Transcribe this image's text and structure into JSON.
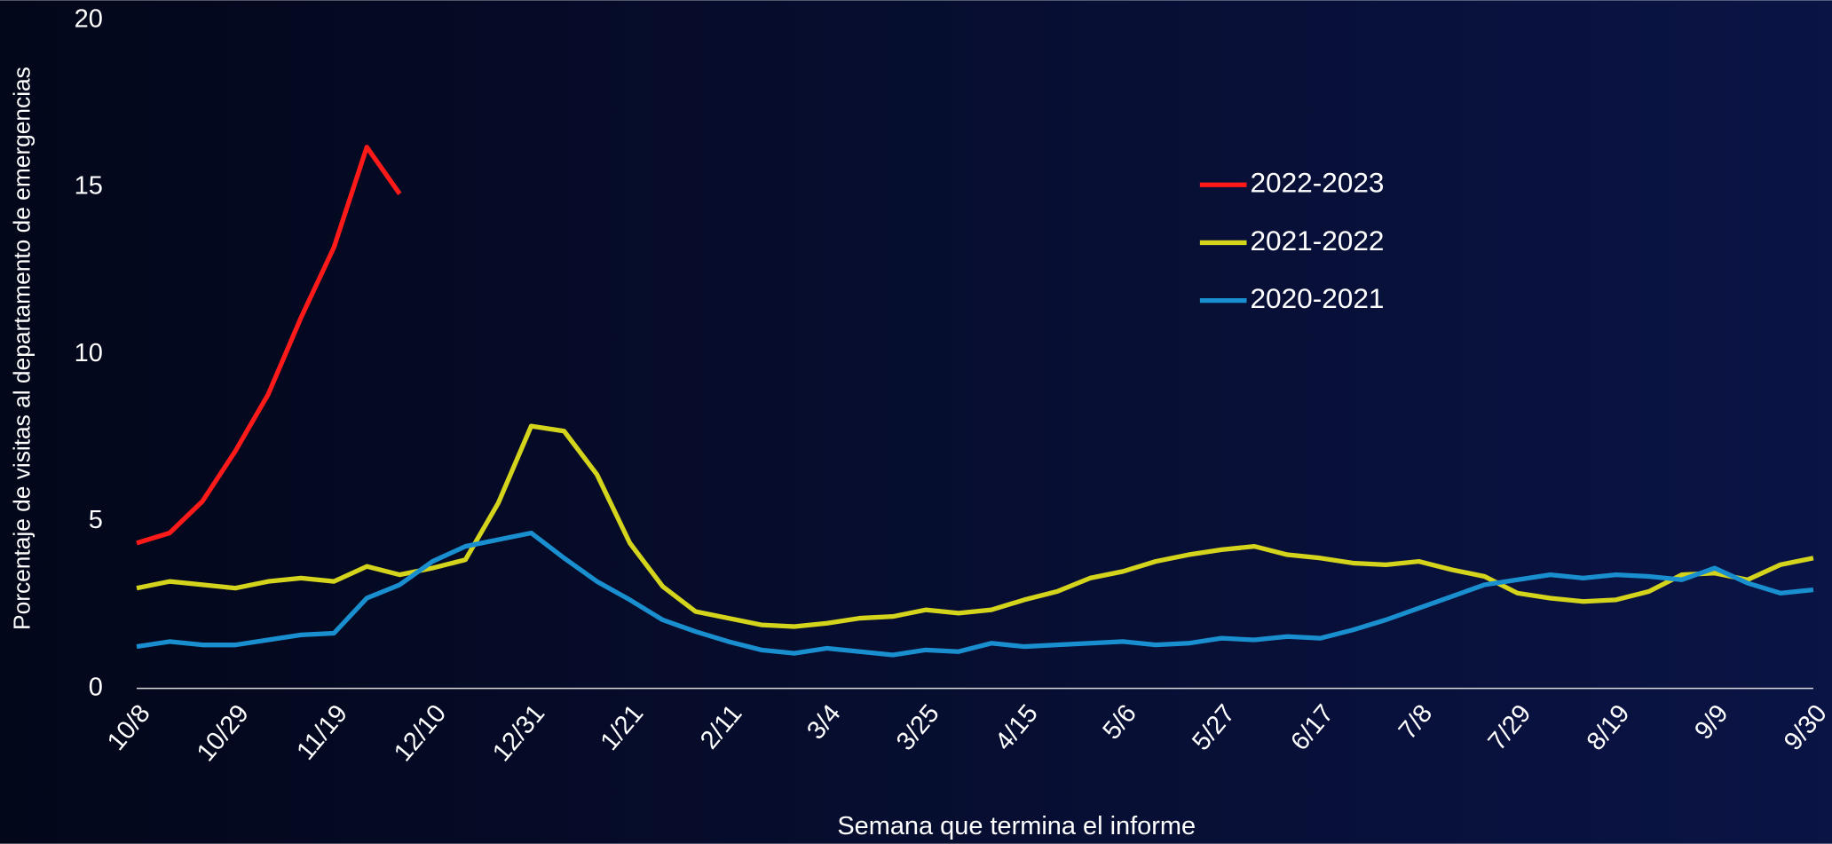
{
  "chart_data": {
    "type": "line",
    "x_label": "Semana que termina el informe",
    "y_label": "Porcentaje de visitas al departamento de emergencias",
    "categories": [
      "10/8",
      null,
      null,
      "10/29",
      null,
      null,
      "11/19",
      null,
      null,
      "12/10",
      null,
      null,
      "12/31",
      null,
      null,
      "1/21",
      null,
      null,
      "2/11",
      null,
      null,
      "3/4",
      null,
      null,
      "3/25",
      null,
      null,
      "4/15",
      null,
      null,
      "5/6",
      null,
      null,
      "5/27",
      null,
      null,
      "6/17",
      null,
      null,
      "7/8",
      null,
      null,
      "7/29",
      null,
      null,
      "8/19",
      null,
      null,
      "9/9",
      null,
      null,
      "9/30"
    ],
    "ylim": [
      0,
      20
    ],
    "yticks": [
      0,
      5,
      10,
      15,
      20
    ],
    "grid": false,
    "legend": "upper right",
    "series": [
      {
        "name": "2022-2023",
        "color": "#ff1a1a",
        "values": [
          4.35,
          4.65,
          5.6,
          7.1,
          8.8,
          11.1,
          13.2,
          16.2,
          14.8,
          null,
          null,
          null,
          null,
          null,
          null,
          null,
          null,
          null,
          null,
          null,
          null,
          null,
          null,
          null,
          null,
          null,
          null,
          null,
          null,
          null,
          null,
          null,
          null,
          null,
          null,
          null,
          null,
          null,
          null,
          null,
          null,
          null,
          null,
          null,
          null,
          null,
          null,
          null,
          null,
          null,
          null,
          null
        ]
      },
      {
        "name": "2021-2022",
        "color": "#d4d41c",
        "values": [
          3.0,
          3.2,
          3.1,
          3.0,
          3.2,
          3.3,
          3.2,
          3.65,
          3.4,
          3.6,
          3.85,
          5.55,
          7.85,
          7.7,
          6.4,
          4.35,
          3.05,
          2.3,
          2.1,
          1.9,
          1.85,
          1.95,
          2.1,
          2.15,
          2.35,
          2.25,
          2.35,
          2.65,
          2.9,
          3.3,
          3.5,
          3.8,
          4.0,
          4.15,
          4.25,
          4.0,
          3.9,
          3.75,
          3.7,
          3.8,
          3.55,
          3.35,
          2.85,
          2.7,
          2.6,
          2.65,
          2.9,
          3.4,
          3.45,
          3.25,
          3.7,
          3.9
        ]
      },
      {
        "name": "2020-2021",
        "color": "#1a8fd0",
        "values": [
          1.25,
          1.4,
          1.3,
          1.3,
          1.45,
          1.6,
          1.65,
          2.7,
          3.1,
          3.8,
          4.25,
          4.45,
          4.65,
          3.9,
          3.2,
          2.65,
          2.05,
          1.7,
          1.4,
          1.15,
          1.05,
          1.2,
          1.1,
          1.0,
          1.15,
          1.1,
          1.35,
          1.25,
          1.3,
          1.35,
          1.4,
          1.3,
          1.35,
          1.5,
          1.45,
          1.55,
          1.5,
          1.75,
          2.05,
          2.4,
          2.75,
          3.1,
          3.25,
          3.4,
          3.3,
          3.4,
          3.35,
          3.25,
          3.6,
          3.15,
          2.85,
          2.95
        ]
      }
    ]
  }
}
